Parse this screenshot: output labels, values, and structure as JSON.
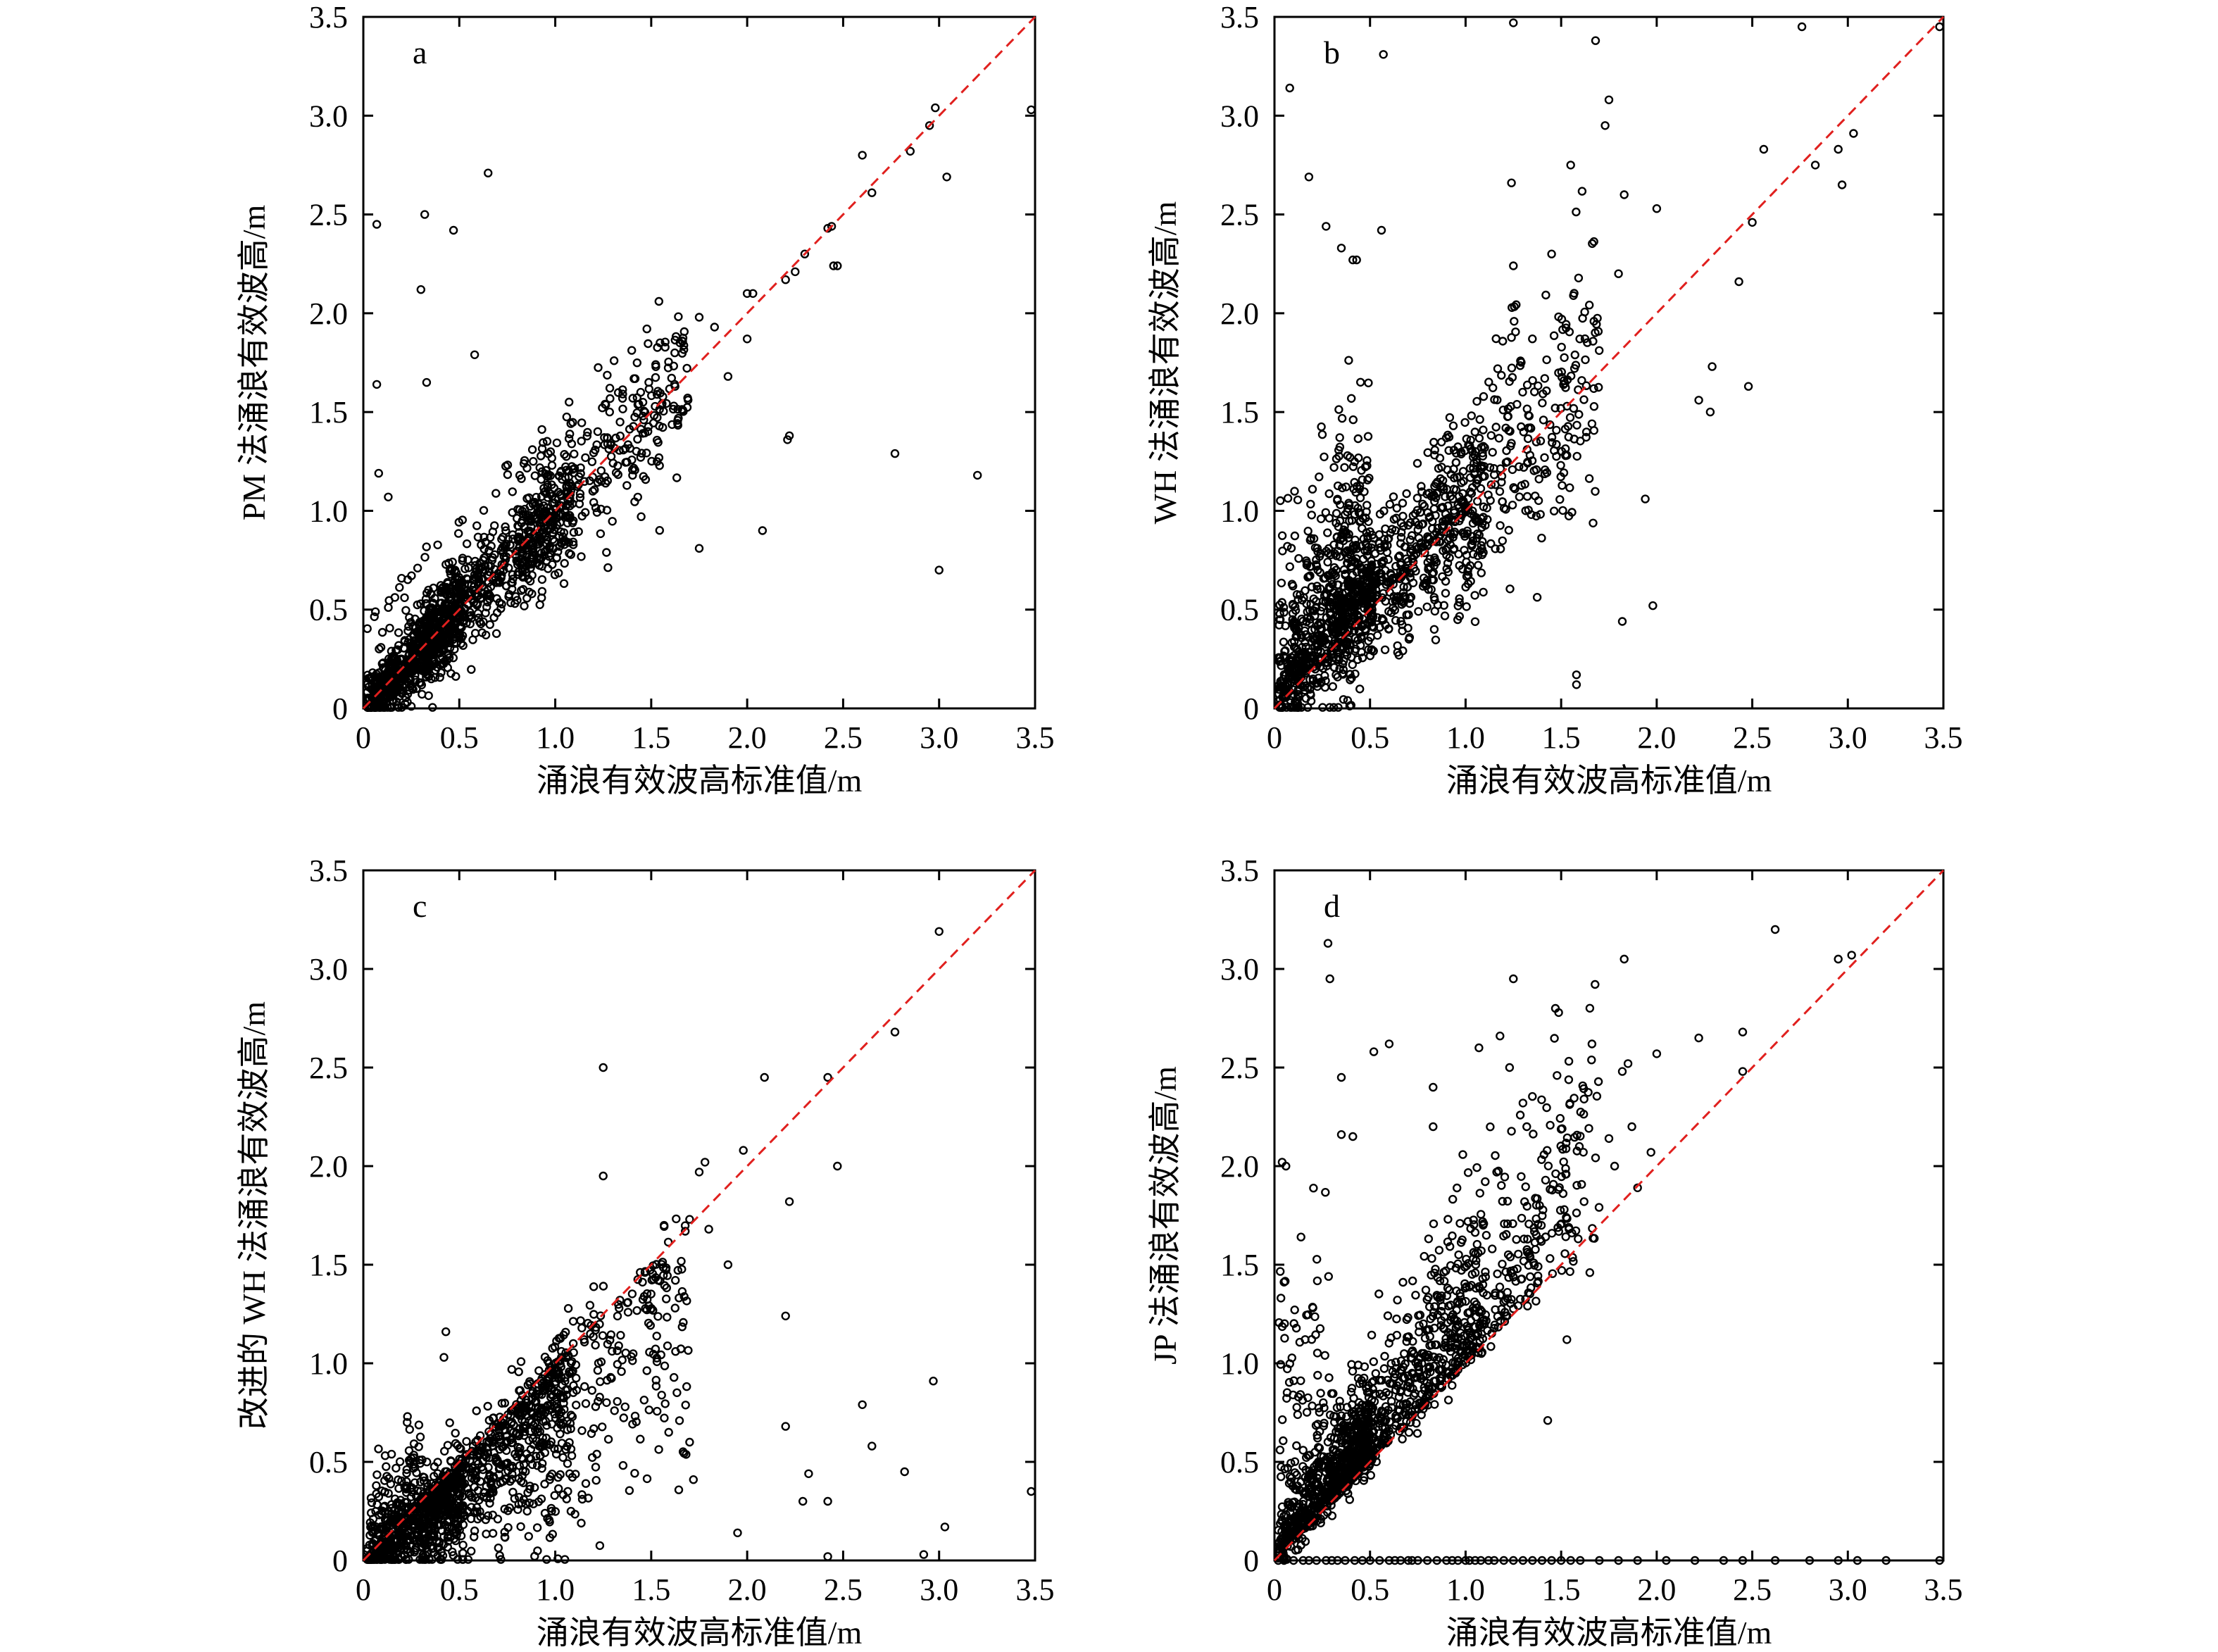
{
  "chart_data": [
    {
      "type": "scatter",
      "panel": "a",
      "xlabel": "涌浪有效波高标准值/m",
      "ylabel": "PM 法涌浪有效波高/m",
      "xlim": [
        0,
        3.5
      ],
      "ylim": [
        0,
        3.5
      ],
      "xticks": [
        "0",
        "0.5",
        "1.0",
        "1.5",
        "2.0",
        "2.5",
        "3.0",
        "3.5"
      ],
      "yticks": [
        "0",
        "0.5",
        "1.0",
        "1.5",
        "2.0",
        "2.5",
        "3.0",
        "3.5"
      ],
      "reference_line": "y = x",
      "reference_line_color": "#e0201e",
      "grid": false,
      "model": "y_close_to_x",
      "points": [
        [
          0.07,
          2.45
        ],
        [
          0.32,
          2.5
        ],
        [
          0.47,
          2.42
        ],
        [
          0.65,
          2.71
        ],
        [
          0.3,
          2.12
        ],
        [
          0.33,
          1.65
        ],
        [
          0.07,
          1.64
        ],
        [
          0.58,
          1.79
        ],
        [
          0.08,
          1.19
        ],
        [
          0.13,
          1.07
        ],
        [
          2.22,
          1.38
        ],
        [
          2.21,
          1.36
        ],
        [
          2.08,
          0.9
        ],
        [
          1.75,
          0.81
        ],
        [
          2.77,
          1.29
        ],
        [
          3.2,
          1.18
        ],
        [
          3.0,
          0.7
        ],
        [
          3.04,
          2.69
        ],
        [
          3.48,
          3.03
        ],
        [
          2.95,
          2.95
        ],
        [
          2.98,
          3.04
        ],
        [
          2.85,
          2.82
        ],
        [
          2.6,
          2.8
        ],
        [
          2.65,
          2.61
        ],
        [
          2.44,
          2.44
        ],
        [
          2.42,
          2.43
        ],
        [
          2.45,
          2.24
        ],
        [
          2.47,
          2.24
        ],
        [
          2.3,
          2.3
        ],
        [
          2.25,
          2.21
        ],
        [
          2.2,
          2.17
        ],
        [
          2.0,
          2.1
        ],
        [
          2.03,
          2.1
        ],
        [
          2.0,
          1.87
        ],
        [
          1.83,
          1.93
        ],
        [
          1.54,
          2.06
        ],
        [
          1.75,
          1.98
        ],
        [
          1.9,
          1.68
        ],
        [
          1.65,
          1.85
        ]
      ]
    },
    {
      "type": "scatter",
      "panel": "b",
      "xlabel": "涌浪有效波高标准值/m",
      "ylabel": "WH 法涌浪有效波高/m",
      "xlim": [
        0,
        3.5
      ],
      "ylim": [
        0,
        3.5
      ],
      "xticks": [
        "0",
        "0.5",
        "1.0",
        "1.5",
        "2.0",
        "2.5",
        "3.0",
        "3.5"
      ],
      "yticks": [
        "0",
        "0.5",
        "1.0",
        "1.5",
        "2.0",
        "2.5",
        "3.0",
        "3.5"
      ],
      "reference_line": "y = x",
      "reference_line_color": "#e0201e",
      "grid": false,
      "model": "y_above_x_near_origin",
      "points": [
        [
          0.08,
          3.14
        ],
        [
          0.57,
          3.31
        ],
        [
          1.25,
          3.47
        ],
        [
          1.68,
          3.38
        ],
        [
          1.75,
          3.08
        ],
        [
          1.73,
          2.95
        ],
        [
          2.76,
          3.45
        ],
        [
          3.48,
          3.45
        ],
        [
          3.03,
          2.91
        ],
        [
          2.95,
          2.83
        ],
        [
          2.83,
          2.75
        ],
        [
          2.97,
          2.65
        ],
        [
          2.56,
          2.83
        ],
        [
          2.5,
          2.46
        ],
        [
          2.43,
          2.16
        ],
        [
          2.48,
          1.63
        ],
        [
          2.29,
          1.73
        ],
        [
          2.22,
          1.56
        ],
        [
          2.28,
          1.5
        ],
        [
          2.0,
          2.53
        ],
        [
          1.83,
          2.6
        ],
        [
          1.55,
          2.75
        ],
        [
          1.24,
          2.66
        ],
        [
          1.25,
          2.24
        ],
        [
          1.45,
          2.3
        ],
        [
          1.8,
          2.2
        ],
        [
          0.18,
          2.69
        ],
        [
          0.27,
          2.44
        ],
        [
          0.35,
          2.33
        ],
        [
          0.41,
          2.27
        ],
        [
          0.56,
          2.42
        ],
        [
          0.43,
          2.27
        ],
        [
          1.94,
          1.06
        ],
        [
          1.98,
          0.52
        ],
        [
          1.82,
          0.44
        ],
        [
          1.58,
          0.17
        ],
        [
          1.58,
          0.12
        ]
      ]
    },
    {
      "type": "scatter",
      "panel": "c",
      "xlabel": "涌浪有效波高标准值/m",
      "ylabel": "改进的 WH 法涌浪有效波高/m",
      "xlim": [
        0,
        3.5
      ],
      "ylim": [
        0,
        3.5
      ],
      "xticks": [
        "0",
        "0.5",
        "1.0",
        "1.5",
        "2.0",
        "2.5",
        "3.0",
        "3.5"
      ],
      "yticks": [
        "0",
        "0.5",
        "1.0",
        "1.5",
        "2.0",
        "2.5",
        "3.0",
        "3.5"
      ],
      "reference_line": "y = x",
      "reference_line_color": "#e0201e",
      "grid": false,
      "model": "y_below_x",
      "points": [
        [
          3.0,
          3.19
        ],
        [
          2.77,
          2.68
        ],
        [
          2.42,
          2.45
        ],
        [
          2.09,
          2.45
        ],
        [
          1.25,
          2.5
        ],
        [
          1.25,
          1.95
        ],
        [
          1.98,
          2.08
        ],
        [
          1.78,
          2.02
        ],
        [
          1.75,
          1.97
        ],
        [
          2.47,
          2.0
        ],
        [
          2.22,
          1.82
        ],
        [
          1.8,
          1.68
        ],
        [
          1.9,
          1.5
        ],
        [
          1.7,
          1.73
        ],
        [
          2.97,
          0.91
        ],
        [
          3.48,
          0.35
        ],
        [
          3.03,
          0.17
        ],
        [
          2.82,
          0.45
        ],
        [
          2.65,
          0.58
        ],
        [
          2.6,
          0.79
        ],
        [
          2.42,
          0.3
        ],
        [
          2.29,
          0.3
        ],
        [
          2.32,
          0.44
        ],
        [
          2.2,
          0.68
        ],
        [
          2.2,
          1.24
        ],
        [
          2.42,
          0.02
        ],
        [
          2.92,
          0.03
        ],
        [
          1.95,
          0.14
        ],
        [
          1.72,
          0.41
        ],
        [
          1.7,
          0.6
        ],
        [
          0.42,
          1.03
        ],
        [
          0.43,
          1.16
        ],
        [
          0.23,
          0.73
        ]
      ]
    },
    {
      "type": "scatter",
      "panel": "d",
      "xlabel": "涌浪有效波高标准值/m",
      "ylabel": "JP 法涌浪有效波高/m",
      "xlim": [
        0,
        3.5
      ],
      "ylim": [
        0,
        3.5
      ],
      "xticks": [
        "0",
        "0.5",
        "1.0",
        "1.5",
        "2.0",
        "2.5",
        "3.0",
        "3.5"
      ],
      "yticks": [
        "0",
        "0.5",
        "1.0",
        "1.5",
        "2.0",
        "2.5",
        "3.0",
        "3.5"
      ],
      "reference_line": "y = x",
      "reference_line_color": "#e0201e",
      "grid": false,
      "model": "y_above_x_with_zero_row",
      "points": [
        [
          0.28,
          3.13
        ],
        [
          0.29,
          2.95
        ],
        [
          0.35,
          2.45
        ],
        [
          0.52,
          2.58
        ],
        [
          0.6,
          2.62
        ],
        [
          1.25,
          2.95
        ],
        [
          1.47,
          2.8
        ],
        [
          1.23,
          2.5
        ],
        [
          1.18,
          2.66
        ],
        [
          1.07,
          2.6
        ],
        [
          0.83,
          2.4
        ],
        [
          1.3,
          2.32
        ],
        [
          1.32,
          2.2
        ],
        [
          1.62,
          2.34
        ],
        [
          1.82,
          2.48
        ],
        [
          1.85,
          2.52
        ],
        [
          1.83,
          3.05
        ],
        [
          2.0,
          2.57
        ],
        [
          2.22,
          2.65
        ],
        [
          2.45,
          2.68
        ],
        [
          2.62,
          3.2
        ],
        [
          2.45,
          2.48
        ],
        [
          3.02,
          3.07
        ],
        [
          2.95,
          3.05
        ],
        [
          1.97,
          2.07
        ],
        [
          1.75,
          2.14
        ],
        [
          1.87,
          2.2
        ],
        [
          1.78,
          2.0
        ],
        [
          1.9,
          1.89
        ],
        [
          1.62,
          1.82
        ],
        [
          0.04,
          2.02
        ],
        [
          0.06,
          2.0
        ],
        [
          0.35,
          2.16
        ],
        [
          0.41,
          2.15
        ],
        [
          1.43,
          0.71
        ],
        [
          1.53,
          1.12
        ],
        [
          1.65,
          1.46
        ],
        [
          0.83,
          2.2
        ]
      ],
      "zero_row_x": [
        0.02,
        0.05,
        0.1,
        0.15,
        0.18,
        0.22,
        0.27,
        0.3,
        0.33,
        0.37,
        0.42,
        0.46,
        0.5,
        0.55,
        0.6,
        0.63,
        0.66,
        0.7,
        0.72,
        0.75,
        0.8,
        0.85,
        0.9,
        0.93,
        0.96,
        1.0,
        1.02,
        1.05,
        1.08,
        1.12,
        1.15,
        1.2,
        1.25,
        1.3,
        1.35,
        1.4,
        1.45,
        1.5,
        1.55,
        1.6,
        1.7,
        1.8,
        1.9,
        2.05,
        2.2,
        2.35,
        2.45,
        2.62,
        2.8,
        2.95,
        3.05,
        3.2,
        3.48
      ]
    }
  ]
}
